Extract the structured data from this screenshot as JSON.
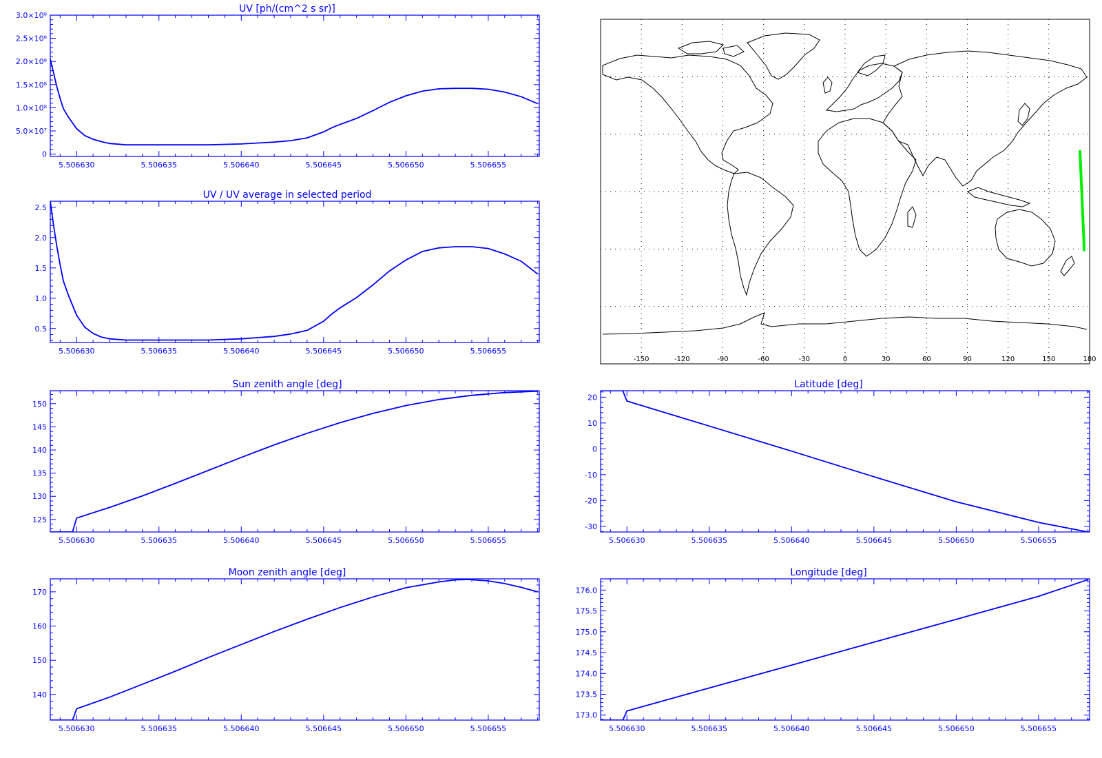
{
  "colors": {
    "axis": "#0000ff",
    "line": "#0000ff",
    "map": "#000000",
    "track": "#00ee00",
    "background": "#ffffff"
  },
  "chart_data": [
    {
      "id": "uv",
      "type": "line",
      "title": "UV [ph/(cm^2 s sr)]",
      "xlim": [
        5.5066284,
        5.5066581
      ],
      "ylim": [
        -5000000.0,
        300000000.0
      ],
      "xtick_values": [
        5.50663,
        5.506635,
        5.50664,
        5.506645,
        5.50665,
        5.506655
      ],
      "xtick_labels": [
        "5.506630",
        "5.506635",
        "5.506640",
        "5.506645",
        "5.506650",
        "5.506655"
      ],
      "ytick_values": [
        0,
        50000000.0,
        100000000.0,
        150000000.0,
        200000000.0,
        250000000.0,
        300000000.0
      ],
      "ytick_labels": [
        "0",
        "5.0×10⁷",
        "1.0×10⁸",
        "1.5×10⁸",
        "2.0×10⁸",
        "2.5×10⁸",
        "3.0×10⁸"
      ],
      "series": [
        {
          "x": [
            5.5066284,
            5.5066286,
            5.5066288,
            5.506629,
            5.5066292,
            5.5066295,
            5.50663,
            5.5066305,
            5.506631,
            5.5066315,
            5.506632,
            5.506633,
            5.506635,
            5.506638,
            5.50664,
            5.506642,
            5.506643,
            5.506644,
            5.506645,
            5.5066455,
            5.506646,
            5.506647,
            5.506648,
            5.506649,
            5.50665,
            5.506651,
            5.506652,
            5.506653,
            5.506654,
            5.506655,
            5.506656,
            5.506657,
            5.506658
          ],
          "y": [
            205000000.0,
            175000000.0,
            145000000.0,
            120000000.0,
            98000000.0,
            80000000.0,
            55000000.0,
            40000000.0,
            32000000.0,
            27000000.0,
            23000000.0,
            20000000.0,
            20000000.0,
            20000000.0,
            22000000.0,
            26000000.0,
            29000000.0,
            35000000.0,
            48000000.0,
            57000000.0,
            64000000.0,
            77000000.0,
            94000000.0,
            112000000.0,
            126000000.0,
            136000000.0,
            141000000.0,
            142000000.0,
            142000000.0,
            140000000.0,
            134000000.0,
            124000000.0,
            109000000.0
          ]
        }
      ]
    },
    {
      "id": "uvratio",
      "type": "line",
      "title": "UV / UV average in selected period",
      "xlim": [
        5.5066284,
        5.5066581
      ],
      "ylim": [
        0.27,
        2.6
      ],
      "xtick_values": [
        5.50663,
        5.506635,
        5.50664,
        5.506645,
        5.50665,
        5.506655
      ],
      "xtick_labels": [
        "5.506630",
        "5.506635",
        "5.506640",
        "5.506645",
        "5.506650",
        "5.506655"
      ],
      "ytick_values": [
        0.5,
        1.0,
        1.5,
        2.0,
        2.5
      ],
      "ytick_labels": [
        "0.5",
        "1.0",
        "1.5",
        "2.0",
        "2.5"
      ],
      "series": [
        {
          "x": [
            5.5066284,
            5.5066286,
            5.5066288,
            5.506629,
            5.5066292,
            5.5066295,
            5.50663,
            5.5066305,
            5.506631,
            5.5066315,
            5.506632,
            5.506633,
            5.506635,
            5.506638,
            5.50664,
            5.506642,
            5.506643,
            5.506644,
            5.506645,
            5.5066455,
            5.506646,
            5.506647,
            5.506648,
            5.506649,
            5.50665,
            5.506651,
            5.506652,
            5.506653,
            5.506654,
            5.506655,
            5.506656,
            5.506657,
            5.506658
          ],
          "y": [
            2.6,
            2.2,
            1.85,
            1.55,
            1.28,
            1.05,
            0.72,
            0.52,
            0.42,
            0.36,
            0.33,
            0.31,
            0.31,
            0.31,
            0.33,
            0.37,
            0.41,
            0.47,
            0.62,
            0.74,
            0.84,
            1.01,
            1.22,
            1.45,
            1.63,
            1.77,
            1.83,
            1.85,
            1.85,
            1.82,
            1.73,
            1.61,
            1.4
          ]
        }
      ]
    },
    {
      "id": "sunzen",
      "type": "line",
      "title": "Sun zenith angle [deg]",
      "xlim": [
        5.5066284,
        5.5066581
      ],
      "ylim": [
        122.3,
        152.8
      ],
      "xtick_values": [
        5.50663,
        5.506635,
        5.50664,
        5.506645,
        5.50665,
        5.506655
      ],
      "xtick_labels": [
        "5.506630",
        "5.506635",
        "5.506640",
        "5.506645",
        "5.506650",
        "5.506655"
      ],
      "ytick_values": [
        125,
        130,
        135,
        140,
        145,
        150
      ],
      "ytick_labels": [
        "125",
        "130",
        "135",
        "140",
        "145",
        "150"
      ],
      "series": [
        {
          "x": [
            5.5066284,
            5.50662975,
            5.50663,
            5.506632,
            5.506634,
            5.506636,
            5.506638,
            5.50664,
            5.506642,
            5.506644,
            5.506646,
            5.506648,
            5.50665,
            5.506652,
            5.506654,
            5.506656,
            5.506658
          ],
          "y": [
            122.3,
            122.3,
            125.3,
            127.6,
            130.1,
            132.8,
            135.6,
            138.4,
            141.1,
            143.6,
            145.9,
            147.9,
            149.6,
            150.9,
            151.8,
            152.4,
            152.7
          ]
        }
      ]
    },
    {
      "id": "latitude",
      "type": "line",
      "title": "Latitude [deg]",
      "xlim": [
        5.5066284,
        5.5066581
      ],
      "ylim": [
        -32.2,
        22.5
      ],
      "xtick_values": [
        5.50663,
        5.506635,
        5.50664,
        5.506645,
        5.50665,
        5.506655
      ],
      "xtick_labels": [
        "5.506630",
        "5.506635",
        "5.506640",
        "5.506645",
        "5.506650",
        "5.506655"
      ],
      "ytick_values": [
        -30,
        -20,
        -10,
        0,
        10,
        20
      ],
      "ytick_labels": [
        "-30",
        "-20",
        "-10",
        "0",
        "10",
        "20"
      ],
      "series": [
        {
          "x": [
            5.5066284,
            5.50662975,
            5.50663,
            5.506635,
            5.50664,
            5.506645,
            5.50665,
            5.506655,
            5.506658
          ],
          "y": [
            22.5,
            22.5,
            18.5,
            8.8,
            -0.9,
            -10.8,
            -20.5,
            -28.5,
            -32.2
          ]
        }
      ]
    },
    {
      "id": "moonzen",
      "type": "line",
      "title": "Moon zenith angle [deg]",
      "xlim": [
        5.5066284,
        5.5066581
      ],
      "ylim": [
        132.5,
        173.8
      ],
      "xtick_values": [
        5.50663,
        5.506635,
        5.50664,
        5.506645,
        5.50665,
        5.506655
      ],
      "xtick_labels": [
        "5.506630",
        "5.506635",
        "5.506640",
        "5.506645",
        "5.506650",
        "5.506655"
      ],
      "ytick_values": [
        140,
        150,
        160,
        170
      ],
      "ytick_labels": [
        "140",
        "150",
        "160",
        "170"
      ],
      "series": [
        {
          "x": [
            5.5066284,
            5.50662975,
            5.50663,
            5.506632,
            5.506634,
            5.506636,
            5.506638,
            5.50664,
            5.506642,
            5.506644,
            5.506646,
            5.506648,
            5.50665,
            5.506652,
            5.506653,
            5.5066538,
            5.506655,
            5.506656,
            5.506657,
            5.506658
          ],
          "y": [
            132.5,
            132.5,
            135.8,
            139.2,
            143.0,
            146.8,
            150.8,
            154.6,
            158.4,
            162.0,
            165.4,
            168.5,
            171.2,
            172.9,
            173.5,
            173.6,
            173.2,
            172.4,
            171.3,
            170.0
          ]
        }
      ]
    },
    {
      "id": "longitude",
      "type": "line",
      "title": "Longitude [deg]",
      "xlim": [
        5.5066284,
        5.5066581
      ],
      "ylim": [
        172.88,
        176.27
      ],
      "xtick_values": [
        5.50663,
        5.506635,
        5.50664,
        5.506645,
        5.50665,
        5.506655
      ],
      "xtick_labels": [
        "5.506630",
        "5.506635",
        "5.506640",
        "5.506645",
        "5.506650",
        "5.506655"
      ],
      "ytick_values": [
        173.0,
        173.5,
        174.0,
        174.5,
        175.0,
        175.5,
        176.0
      ],
      "ytick_labels": [
        "173.0",
        "173.5",
        "174.0",
        "174.5",
        "175.0",
        "175.5",
        "176.0"
      ],
      "series": [
        {
          "x": [
            5.5066284,
            5.50662975,
            5.50663,
            5.506635,
            5.50664,
            5.506645,
            5.50665,
            5.506655,
            5.506658
          ],
          "y": [
            172.88,
            172.88,
            173.1,
            173.65,
            174.2,
            174.75,
            175.3,
            175.85,
            176.25
          ]
        }
      ]
    }
  ],
  "map": {
    "lon_range": [
      -180,
      180
    ],
    "lat_range": [
      -90,
      90
    ],
    "xtick_values": [
      -150,
      -120,
      -90,
      -60,
      -30,
      0,
      30,
      60,
      90,
      120,
      150,
      180
    ],
    "xtick_labels": [
      "-150",
      "-120",
      "-90",
      "-60",
      "-30",
      "0",
      "30",
      "60",
      "90",
      "120",
      "150",
      "180"
    ],
    "grid_lat": [
      -60,
      -30,
      0,
      30,
      60
    ],
    "track": {
      "lon": [
        172.9,
        173.3,
        173.7,
        174.1,
        174.5,
        174.9,
        175.3,
        175.7,
        176.0
      ],
      "lat": [
        21.0,
        14.5,
        8.0,
        1.5,
        -5.0,
        -11.5,
        -18.0,
        -24.5,
        -30.5
      ]
    }
  }
}
